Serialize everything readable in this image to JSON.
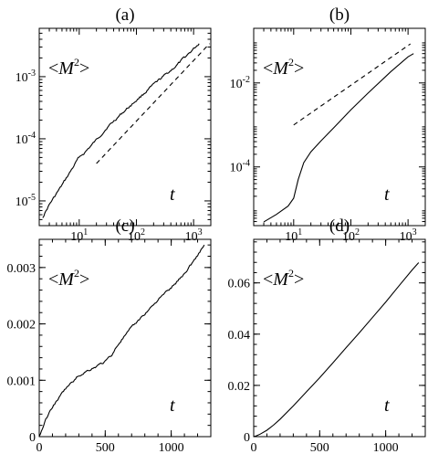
{
  "chart_data": [
    {
      "type": "line",
      "panel_label": "(a)",
      "xscale": "log",
      "yscale": "log",
      "xlim": [
        2,
        2000
      ],
      "ylim": [
        4e-06,
        0.006
      ],
      "xticks": [
        10,
        100,
        1000
      ],
      "xtick_labels": [
        {
          "base": "10",
          "exp": "1"
        },
        {
          "base": "10",
          "exp": "2"
        },
        {
          "base": "10",
          "exp": "3"
        }
      ],
      "yticks": [
        1e-05,
        0.0001,
        0.001
      ],
      "ytick_labels": [
        {
          "base": "10",
          "exp": "-5"
        },
        {
          "base": "10",
          "exp": "-4"
        },
        {
          "base": "10",
          "exp": "-3"
        }
      ],
      "quantity": {
        "open": "<",
        "symbol": "M",
        "sup": "2",
        "close": ">"
      },
      "x_var": "t",
      "series": [
        {
          "style": "solid",
          "noise": 0.015,
          "x": [
            2.3,
            3,
            5,
            8,
            10,
            12,
            15,
            20,
            30,
            50,
            100,
            200,
            500,
            1000,
            1250
          ],
          "y": [
            5.5e-06,
            8.7e-06,
            1.78e-05,
            3.6e-05,
            5.1e-05,
            5.8e-05,
            7.2e-05,
            9.55e-05,
            0.000148,
            0.000234,
            0.000416,
            0.000741,
            0.0015,
            0.0028,
            0.0034
          ]
        },
        {
          "style": "dashed",
          "x": [
            20,
            1900
          ],
          "y": [
            4e-05,
            0.0034
          ]
        }
      ]
    },
    {
      "type": "line",
      "panel_label": "(b)",
      "xscale": "log",
      "yscale": "log",
      "xlim": [
        2,
        2000
      ],
      "ylim": [
        4e-06,
        0.2
      ],
      "xticks": [
        10,
        100,
        1000
      ],
      "xtick_labels": [
        {
          "base": "10",
          "exp": "1"
        },
        {
          "base": "10",
          "exp": "2"
        },
        {
          "base": "10",
          "exp": "3"
        }
      ],
      "yticks": [
        0.0001,
        0.01
      ],
      "ytick_labels": [
        {
          "base": "10",
          "exp": "-4"
        },
        {
          "base": "10",
          "exp": "-2"
        }
      ],
      "quantity": {
        "open": "<",
        "symbol": "M",
        "sup": "2",
        "close": ">"
      },
      "x_var": "t",
      "series": [
        {
          "style": "solid",
          "noise": 0,
          "x": [
            3,
            5,
            8,
            10,
            12,
            15,
            20,
            30,
            50,
            100,
            200,
            500,
            1000,
            1250
          ],
          "y": [
            4.9e-06,
            7.4e-06,
            1.17e-05,
            1.8e-05,
            5e-05,
            0.000126,
            0.000229,
            0.000417,
            0.00085,
            0.00229,
            0.00575,
            0.0186,
            0.042,
            0.05
          ]
        },
        {
          "style": "dashed",
          "x": [
            10,
            1100
          ],
          "y": [
            0.001,
            0.085
          ]
        }
      ]
    },
    {
      "type": "line",
      "panel_label": "(c)",
      "xscale": "linear",
      "yscale": "linear",
      "xlim": [
        0,
        1300
      ],
      "ylim": [
        0,
        0.0035
      ],
      "xticks": [
        0,
        500,
        1000
      ],
      "xtick_labels": [
        "0",
        "500",
        "1000"
      ],
      "yticks": [
        0,
        0.001,
        0.002,
        0.003
      ],
      "ytick_labels": [
        "0",
        "0.001",
        "0.002",
        "0.003"
      ],
      "quantity": {
        "open": "<",
        "symbol": "M",
        "sup": "2",
        "close": ">"
      },
      "x_var": "t",
      "series": [
        {
          "style": "solid",
          "noise": 0.012,
          "x": [
            0,
            50,
            100,
            200,
            300,
            350,
            400,
            500,
            550,
            600,
            700,
            800,
            900,
            1000,
            1100,
            1200,
            1250
          ],
          "y": [
            0,
            0.0003,
            0.00053,
            0.00085,
            0.00108,
            0.00115,
            0.00121,
            0.00133,
            0.00145,
            0.00165,
            0.00193,
            0.00218,
            0.00243,
            0.00264,
            0.00289,
            0.00322,
            0.0034
          ]
        }
      ]
    },
    {
      "type": "line",
      "panel_label": "(d)",
      "xscale": "linear",
      "yscale": "linear",
      "xlim": [
        0,
        1300
      ],
      "ylim": [
        0,
        0.077
      ],
      "xticks": [
        0,
        500,
        1000
      ],
      "xtick_labels": [
        "0",
        "500",
        "1000"
      ],
      "yticks": [
        0,
        0.02,
        0.04,
        0.06
      ],
      "ytick_labels": [
        "0",
        "0.02",
        "0.04",
        "0.06"
      ],
      "quantity": {
        "open": "<",
        "symbol": "M",
        "sup": "2",
        "close": ">"
      },
      "x_var": "t",
      "series": [
        {
          "style": "solid",
          "noise": 0,
          "x": [
            0,
            20,
            50,
            100,
            150,
            200,
            300,
            400,
            500,
            600,
            700,
            800,
            900,
            1000,
            1100,
            1200,
            1250
          ],
          "y": [
            0,
            0.0003,
            0.001,
            0.0025,
            0.0045,
            0.0068,
            0.012,
            0.0175,
            0.023,
            0.0288,
            0.0347,
            0.0405,
            0.0465,
            0.0525,
            0.0588,
            0.065,
            0.0679
          ]
        }
      ]
    }
  ]
}
